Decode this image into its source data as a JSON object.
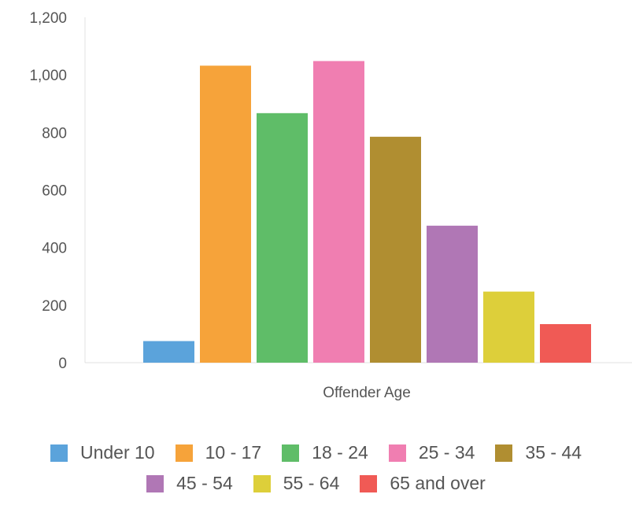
{
  "chart_data": {
    "type": "bar",
    "title": "",
    "xlabel": "Offender Age",
    "ylabel": "",
    "ylim": [
      0,
      1200
    ],
    "yticks": [
      0,
      200,
      400,
      600,
      800,
      1000,
      1200
    ],
    "ytick_labels": [
      "0",
      "200",
      "400",
      "600",
      "800",
      "1,000",
      "1,200"
    ],
    "grid": false,
    "legend_position": "bottom",
    "categories": [
      "Offender Age"
    ],
    "series": [
      {
        "name": "Under 10",
        "values": [
          75
        ],
        "color": "#5ba3db"
      },
      {
        "name": "10 - 17",
        "values": [
          1032
        ],
        "color": "#f6a33a"
      },
      {
        "name": "18 - 24",
        "values": [
          867
        ],
        "color": "#5fbd68"
      },
      {
        "name": "25 - 34",
        "values": [
          1048
        ],
        "color": "#f07eb1"
      },
      {
        "name": "35 - 44",
        "values": [
          785
        ],
        "color": "#b08e31"
      },
      {
        "name": "45 - 54",
        "values": [
          476
        ],
        "color": "#b077b5"
      },
      {
        "name": "55 - 64",
        "values": [
          247
        ],
        "color": "#ddcf3a"
      },
      {
        "name": "65 and over",
        "values": [
          134
        ],
        "color": "#f05a55"
      }
    ]
  }
}
